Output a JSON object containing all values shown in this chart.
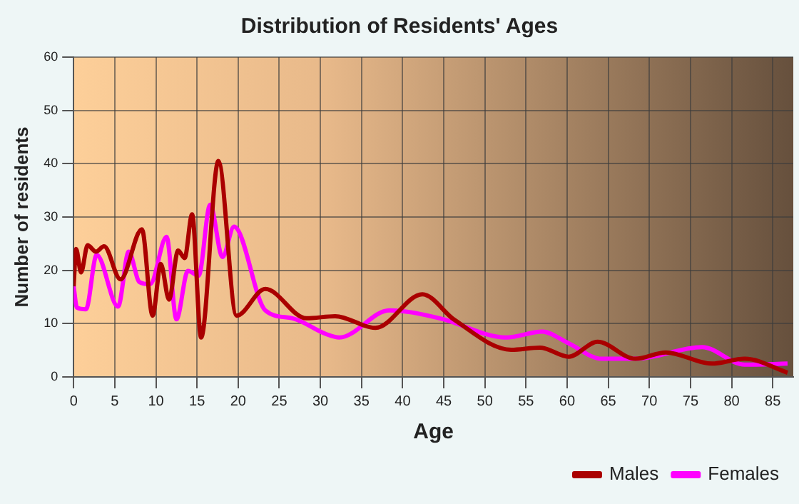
{
  "chart_data": {
    "type": "line",
    "title": "Distribution of Residents' Ages",
    "xlabel": "Age",
    "ylabel": "Number of residents",
    "xlim": [
      0,
      87.5
    ],
    "xticks": [
      0,
      5,
      10,
      15,
      20,
      25,
      30,
      35,
      40,
      45,
      50,
      55,
      60,
      65,
      70,
      75,
      80,
      85
    ],
    "ylim": [
      0,
      60
    ],
    "yticks": [
      0,
      10,
      20,
      30,
      40,
      50,
      60
    ],
    "grid": true,
    "legend": "bottom right",
    "marker": "none",
    "line_style": "solid",
    "series": [
      {
        "name": "Males",
        "color": "#aa0000",
        "x": [
          0,
          0.3,
          0.9,
          1.7,
          2.7,
          3.7,
          5.7,
          8.3,
          9.6,
          10.6,
          11.6,
          12.7,
          13.5,
          14.4,
          15.5,
          17.6,
          19.8,
          23.3,
          28.3,
          31.8,
          36.7,
          42.4,
          46.3,
          53.2,
          56.7,
          60.2,
          63.7,
          68.3,
          72,
          77.6,
          81.6,
          86.8
        ],
        "values": [
          17,
          24,
          19.6,
          24.7,
          23.5,
          24.5,
          18.3,
          27.7,
          11.5,
          21.2,
          14.5,
          23.7,
          22.3,
          30.5,
          7.4,
          40.5,
          11.5,
          16.5,
          11,
          11.4,
          9.2,
          15.5,
          10.7,
          5.1,
          5.5,
          3.8,
          6.6,
          3.4,
          4.6,
          2.5,
          3.4,
          0.8
        ]
      },
      {
        "name": "Females",
        "color": "#ff00ff",
        "x": [
          0,
          0.4,
          1.5,
          2.8,
          5.4,
          6.7,
          8,
          9.3,
          11.3,
          12.5,
          13.9,
          15.2,
          16.6,
          18.1,
          19.5,
          23.3,
          26.6,
          30.6,
          32.3,
          38.4,
          44.5,
          52.6,
          57,
          60.2,
          64.2,
          68.3,
          76.4,
          81.6,
          86.8
        ],
        "values": [
          17,
          13,
          12.7,
          22.9,
          13.2,
          23.5,
          17.8,
          17.4,
          26.3,
          10.8,
          19.9,
          19,
          32.3,
          22.5,
          28.2,
          12.5,
          11,
          8.1,
          7.4,
          12.5,
          11,
          7.4,
          8.5,
          6.3,
          3.4,
          3.4,
          5.6,
          2.3,
          2.5
        ]
      }
    ]
  }
}
